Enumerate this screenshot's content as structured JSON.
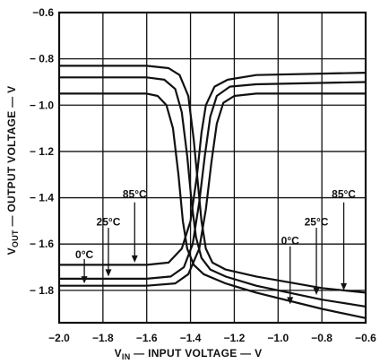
{
  "chart_data": {
    "type": "line",
    "xlabel": {
      "main": "V",
      "sub": "IN",
      "rest": " — INPUT VOLTAGE — V"
    },
    "ylabel": {
      "main": "V",
      "sub": "OUT",
      "rest": " — OUTPUT VOLTAGE — V"
    },
    "xlim": [
      -2.0,
      -0.6
    ],
    "ylim": [
      -1.94,
      -0.6
    ],
    "x_ticks": [
      -2.0,
      -1.8,
      -1.6,
      -1.4,
      -1.2,
      -1.0,
      -0.8,
      -0.6
    ],
    "x_tick_labels": [
      "−2.0",
      "−1.8",
      "−1.6",
      "−1.4",
      "−1.2",
      "−1.0",
      "−0.8",
      "−0.6"
    ],
    "y_ticks": [
      -0.6,
      -0.8,
      -1.0,
      -1.2,
      -1.4,
      -1.6,
      -1.8
    ],
    "y_tick_labels": [
      "−0.6",
      "− 0.8",
      "− 1.0",
      "− 1.2",
      "− 1.4",
      "− 1.6",
      "− 1.8"
    ],
    "grid": true,
    "series": [
      {
        "group": "falling",
        "points": [
          [
            -2.0,
            -0.83
          ],
          [
            -1.6,
            -0.83
          ],
          [
            -1.5,
            -0.84
          ],
          [
            -1.45,
            -0.87
          ],
          [
            -1.41,
            -0.96
          ],
          [
            -1.385,
            -1.15
          ],
          [
            -1.365,
            -1.35
          ],
          [
            -1.35,
            -1.5
          ],
          [
            -1.33,
            -1.62
          ],
          [
            -1.3,
            -1.68
          ],
          [
            -1.24,
            -1.71
          ],
          [
            -1.1,
            -1.74
          ],
          [
            -0.8,
            -1.79
          ],
          [
            -0.6,
            -1.81
          ]
        ]
      },
      {
        "group": "falling",
        "points": [
          [
            -2.0,
            -0.88
          ],
          [
            -1.6,
            -0.88
          ],
          [
            -1.52,
            -0.89
          ],
          [
            -1.47,
            -0.93
          ],
          [
            -1.44,
            -1.03
          ],
          [
            -1.415,
            -1.22
          ],
          [
            -1.395,
            -1.42
          ],
          [
            -1.375,
            -1.57
          ],
          [
            -1.35,
            -1.66
          ],
          [
            -1.31,
            -1.71
          ],
          [
            -1.24,
            -1.74
          ],
          [
            -1.1,
            -1.78
          ],
          [
            -0.8,
            -1.84
          ],
          [
            -0.6,
            -1.87
          ]
        ]
      },
      {
        "group": "falling",
        "points": [
          [
            -2.0,
            -0.95
          ],
          [
            -1.6,
            -0.95
          ],
          [
            -1.55,
            -0.96
          ],
          [
            -1.51,
            -1.0
          ],
          [
            -1.48,
            -1.1
          ],
          [
            -1.455,
            -1.3
          ],
          [
            -1.435,
            -1.5
          ],
          [
            -1.415,
            -1.62
          ],
          [
            -1.385,
            -1.69
          ],
          [
            -1.34,
            -1.73
          ],
          [
            -1.24,
            -1.77
          ],
          [
            -1.1,
            -1.81
          ],
          [
            -0.8,
            -1.88
          ],
          [
            -0.6,
            -1.92
          ]
        ]
      },
      {
        "group": "rising",
        "points": [
          [
            -2.0,
            -1.69
          ],
          [
            -1.6,
            -1.69
          ],
          [
            -1.5,
            -1.68
          ],
          [
            -1.44,
            -1.62
          ],
          [
            -1.4,
            -1.5
          ],
          [
            -1.37,
            -1.3
          ],
          [
            -1.35,
            -1.12
          ],
          [
            -1.33,
            -1.0
          ],
          [
            -1.29,
            -0.92
          ],
          [
            -1.23,
            -0.89
          ],
          [
            -1.1,
            -0.87
          ],
          [
            -0.6,
            -0.86
          ]
        ]
      },
      {
        "group": "rising",
        "points": [
          [
            -2.0,
            -1.75
          ],
          [
            -1.6,
            -1.75
          ],
          [
            -1.49,
            -1.74
          ],
          [
            -1.43,
            -1.7
          ],
          [
            -1.39,
            -1.6
          ],
          [
            -1.36,
            -1.42
          ],
          [
            -1.335,
            -1.22
          ],
          [
            -1.31,
            -1.05
          ],
          [
            -1.28,
            -0.96
          ],
          [
            -1.22,
            -0.92
          ],
          [
            -1.1,
            -0.91
          ],
          [
            -0.6,
            -0.9
          ]
        ]
      },
      {
        "group": "rising",
        "points": [
          [
            -2.0,
            -1.78
          ],
          [
            -1.6,
            -1.78
          ],
          [
            -1.47,
            -1.77
          ],
          [
            -1.41,
            -1.73
          ],
          [
            -1.36,
            -1.62
          ],
          [
            -1.33,
            -1.45
          ],
          [
            -1.305,
            -1.25
          ],
          [
            -1.28,
            -1.08
          ],
          [
            -1.25,
            -0.99
          ],
          [
            -1.2,
            -0.96
          ],
          [
            -1.1,
            -0.95
          ],
          [
            -0.6,
            -0.95
          ]
        ]
      }
    ],
    "annotations": [
      {
        "text": "85°C",
        "side": "left",
        "label_at": [
          -1.655,
          -1.385
        ],
        "arrow_from": [
          -1.655,
          -1.42
        ],
        "arrow_to": [
          -1.655,
          -1.68
        ]
      },
      {
        "text": "25°C",
        "side": "left",
        "label_at": [
          -1.775,
          -1.505
        ],
        "arrow_from": [
          -1.775,
          -1.53
        ],
        "arrow_to": [
          -1.775,
          -1.74
        ]
      },
      {
        "text": "0°C",
        "side": "left",
        "label_at": [
          -1.885,
          -1.645
        ],
        "arrow_from": [
          -1.885,
          -1.665
        ],
        "arrow_to": [
          -1.885,
          -1.77
        ]
      },
      {
        "text": "85°C",
        "side": "right",
        "label_at": [
          -0.7,
          -1.385
        ],
        "arrow_from": [
          -0.7,
          -1.42
        ],
        "arrow_to": [
          -0.7,
          -1.8
        ]
      },
      {
        "text": "25°C",
        "side": "right",
        "label_at": [
          -0.825,
          -1.505
        ],
        "arrow_from": [
          -0.825,
          -1.53
        ],
        "arrow_to": [
          -0.825,
          -1.82
        ]
      },
      {
        "text": "0°C",
        "side": "right",
        "label_at": [
          -0.945,
          -1.585
        ],
        "arrow_from": [
          -0.945,
          -1.61
        ],
        "arrow_to": [
          -0.945,
          -1.86
        ]
      }
    ]
  }
}
